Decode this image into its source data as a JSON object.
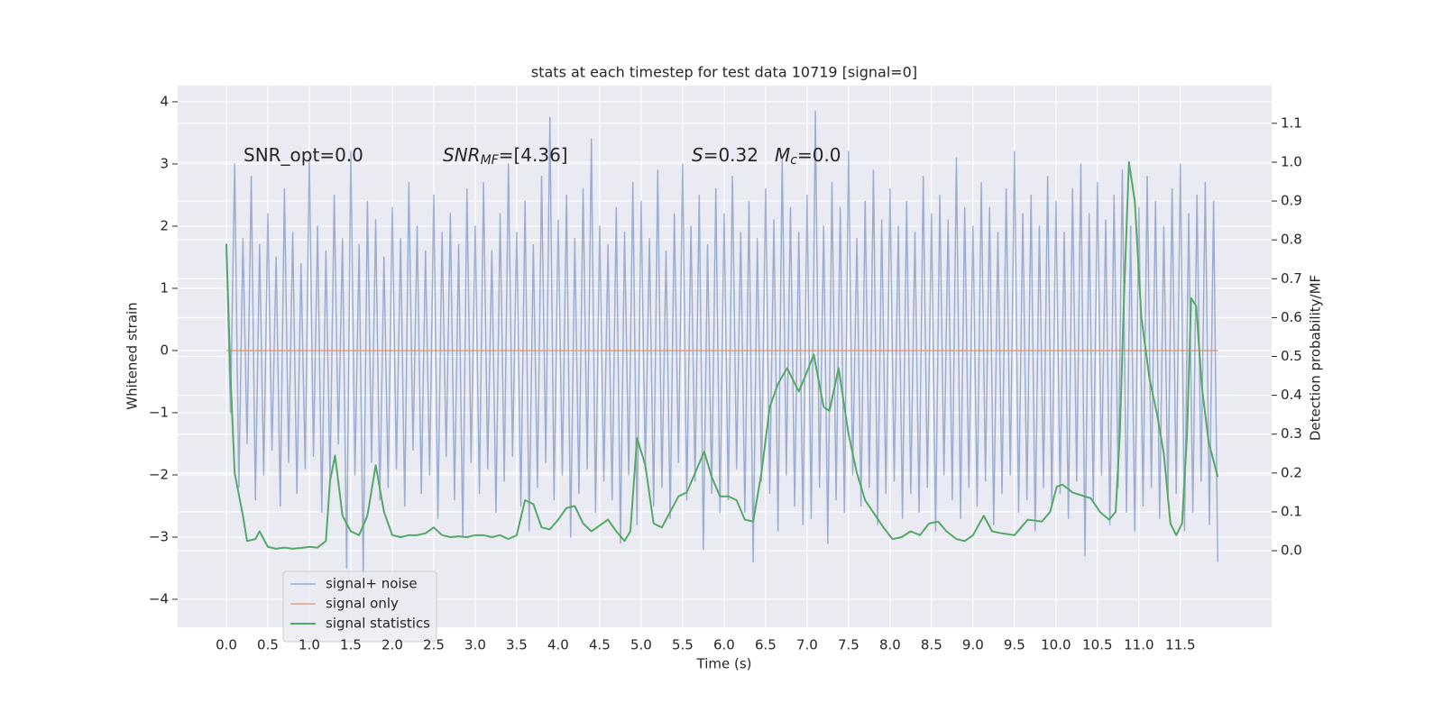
{
  "chart_data": {
    "type": "line",
    "title": "stats at each timestep for test data 10719 [signal=0]",
    "xlabel": "Time (s)",
    "ylabel": "Whitened strain",
    "y2label": "Detection probability/MF",
    "annotations": [
      {
        "text": "SNR_opt=0.0"
      },
      {
        "text": "SNR",
        "sub": "MF",
        "after": "=[4.36]"
      },
      {
        "text": "S",
        "after": "=0.32"
      },
      {
        "text": "M",
        "sub": "c",
        "after": "=0.0"
      }
    ],
    "xlim": [
      -0.587,
      12.6
    ],
    "ylim": [
      -4.45,
      4.26
    ],
    "y2lim": [
      -0.197,
      1.197
    ],
    "xticks": [
      {
        "value": 0,
        "label": "0.0"
      },
      {
        "value": 0.5,
        "label": "0.5"
      },
      {
        "value": 1,
        "label": "1.0"
      },
      {
        "value": 1.5,
        "label": "1.5"
      },
      {
        "value": 2,
        "label": "2.0"
      },
      {
        "value": 2.5,
        "label": "2.5"
      },
      {
        "value": 3,
        "label": "3.0"
      },
      {
        "value": 3.5,
        "label": "3.5"
      },
      {
        "value": 4,
        "label": "4.0"
      },
      {
        "value": 4.5,
        "label": "4.5"
      },
      {
        "value": 5,
        "label": "5.0"
      },
      {
        "value": 5.5,
        "label": "5.5"
      },
      {
        "value": 6,
        "label": "6.0"
      },
      {
        "value": 6.5,
        "label": "6.5"
      },
      {
        "value": 7,
        "label": "7.0"
      },
      {
        "value": 7.5,
        "label": "7.5"
      },
      {
        "value": 8,
        "label": "8.0"
      },
      {
        "value": 8.5,
        "label": "8.5"
      },
      {
        "value": 9,
        "label": "9.0"
      },
      {
        "value": 9.5,
        "label": "9.5"
      },
      {
        "value": 10,
        "label": "10.0"
      },
      {
        "value": 10.5,
        "label": "10.5"
      },
      {
        "value": 11,
        "label": "11.0"
      },
      {
        "value": 11.5,
        "label": "11.5"
      }
    ],
    "yticks": [
      {
        "value": -4,
        "label": "−4"
      },
      {
        "value": -3,
        "label": "−3"
      },
      {
        "value": -2,
        "label": "−2"
      },
      {
        "value": -1,
        "label": "−1"
      },
      0,
      1,
      2,
      3,
      4
    ],
    "y2ticks": [
      {
        "value": 0,
        "label": "0.0"
      },
      {
        "value": 0.1,
        "label": "0.1"
      },
      {
        "value": 0.2,
        "label": "0.2"
      },
      {
        "value": 0.3,
        "label": "0.3"
      },
      {
        "value": 0.4,
        "label": "0.4"
      },
      {
        "value": 0.5,
        "label": "0.5"
      },
      {
        "value": 0.6,
        "label": "0.6"
      },
      {
        "value": 0.7,
        "label": "0.7"
      },
      {
        "value": 0.8,
        "label": "0.8"
      },
      {
        "value": 0.9,
        "label": "0.9"
      },
      {
        "value": 1,
        "label": "1.0"
      },
      {
        "value": 1.1,
        "label": "1.1"
      }
    ],
    "grid": true,
    "legend": "lower left",
    "series": [
      {
        "name": "signal+ noise",
        "color": "#4c72b0",
        "x": [
          0,
          0.05,
          0.1,
          0.15,
          0.2,
          0.25,
          0.3,
          0.35,
          0.4,
          0.45,
          0.5,
          0.55,
          0.6,
          0.65,
          0.7,
          0.75,
          0.8,
          0.85,
          0.9,
          0.95,
          1,
          1.05,
          1.1,
          1.15,
          1.2,
          1.25,
          1.3,
          1.35,
          1.4,
          1.45,
          1.5,
          1.55,
          1.6,
          1.65,
          1.7,
          1.75,
          1.8,
          1.85,
          1.9,
          1.95,
          2,
          2.05,
          2.1,
          2.15,
          2.2,
          2.25,
          2.3,
          2.35,
          2.4,
          2.45,
          2.5,
          2.55,
          2.6,
          2.65,
          2.7,
          2.75,
          2.8,
          2.85,
          2.9,
          2.95,
          3,
          3.05,
          3.1,
          3.15,
          3.2,
          3.25,
          3.3,
          3.35,
          3.4,
          3.45,
          3.5,
          3.55,
          3.6,
          3.65,
          3.7,
          3.75,
          3.8,
          3.85,
          3.9,
          3.95,
          4,
          4.05,
          4.1,
          4.15,
          4.2,
          4.25,
          4.3,
          4.35,
          4.4,
          4.45,
          4.5,
          4.55,
          4.6,
          4.65,
          4.7,
          4.75,
          4.8,
          4.85,
          4.9,
          4.95,
          5,
          5.05,
          5.1,
          5.15,
          5.2,
          5.25,
          5.3,
          5.35,
          5.4,
          5.45,
          5.5,
          5.55,
          5.6,
          5.65,
          5.7,
          5.75,
          5.8,
          5.85,
          5.9,
          5.95,
          6,
          6.05,
          6.1,
          6.15,
          6.2,
          6.25,
          6.3,
          6.35,
          6.4,
          6.45,
          6.5,
          6.55,
          6.6,
          6.65,
          6.7,
          6.75,
          6.8,
          6.85,
          6.9,
          6.95,
          7,
          7.05,
          7.1,
          7.15,
          7.2,
          7.25,
          7.3,
          7.35,
          7.4,
          7.45,
          7.5,
          7.55,
          7.6,
          7.65,
          7.7,
          7.75,
          7.8,
          7.85,
          7.9,
          7.95,
          8,
          8.05,
          8.1,
          8.15,
          8.2,
          8.25,
          8.3,
          8.35,
          8.4,
          8.45,
          8.5,
          8.55,
          8.6,
          8.65,
          8.7,
          8.75,
          8.8,
          8.85,
          8.9,
          8.95,
          9,
          9.05,
          9.1,
          9.15,
          9.2,
          9.25,
          9.3,
          9.35,
          9.4,
          9.45,
          9.5,
          9.55,
          9.6,
          9.65,
          9.7,
          9.75,
          9.8,
          9.85,
          9.9,
          9.95,
          10,
          10.05,
          10.1,
          10.15,
          10.2,
          10.25,
          10.3,
          10.35,
          10.4,
          10.45,
          10.5,
          10.55,
          10.6,
          10.65,
          10.7,
          10.75,
          10.8,
          10.85,
          10.9,
          10.95,
          11,
          11.05,
          11.1,
          11.15,
          11.2,
          11.25,
          11.3,
          11.35,
          11.4,
          11.45,
          11.5,
          11.55,
          11.6,
          11.65,
          11.7,
          11.75,
          11.8,
          11.85,
          11.9,
          11.95
        ],
        "values": [
          1.6,
          -1.0,
          3.0,
          -2.2,
          1.8,
          -1.5,
          2.8,
          -2.4,
          1.7,
          -2.0,
          2.2,
          -1.6,
          1.5,
          -2.5,
          2.6,
          -1.8,
          1.9,
          -2.3,
          1.4,
          -1.9,
          3.1,
          -1.7,
          2.0,
          -2.6,
          1.6,
          -2.1,
          2.5,
          -1.5,
          1.8,
          -3.5,
          3.2,
          -2.0,
          1.7,
          -3.6,
          2.4,
          -1.8,
          2.1,
          -2.4,
          1.5,
          -2.2,
          2.3,
          -1.9,
          1.8,
          -2.5,
          2.7,
          -1.6,
          2.0,
          -2.3,
          1.6,
          -2.0,
          2.5,
          -2.7,
          1.9,
          -1.7,
          2.2,
          -2.4,
          1.7,
          -3.0,
          2.6,
          -1.8,
          2.0,
          -2.3,
          2.7,
          -1.9,
          1.6,
          -2.6,
          2.2,
          -2.1,
          3.0,
          -1.7,
          1.9,
          -2.5,
          2.4,
          -2.9,
          1.7,
          -2.2,
          2.8,
          -1.8,
          3.75,
          -2.4,
          2.1,
          -2.0,
          2.5,
          -3.0,
          1.8,
          -2.3,
          2.6,
          -1.9,
          3.4,
          -2.6,
          2.0,
          -2.1,
          1.7,
          -2.4,
          2.3,
          -3.1,
          1.9,
          -2.0,
          2.7,
          -2.8,
          2.4,
          -1.9,
          1.8,
          -2.5,
          2.9,
          -2.2,
          1.6,
          -2.7,
          2.2,
          -1.8,
          3.0,
          -2.4,
          2.0,
          -2.1,
          2.5,
          -3.2,
          1.7,
          -2.3,
          2.6,
          -2.6,
          2.2,
          -2.4,
          2.8,
          -1.9,
          1.9,
          -2.6,
          2.4,
          -3.4,
          1.8,
          -2.1,
          2.6,
          -2.3,
          2.1,
          -2.9,
          3.1,
          -2.0,
          2.3,
          -2.5,
          1.9,
          -2.8,
          2.5,
          -2.7,
          3.85,
          -2.2,
          2.0,
          -3.1,
          2.7,
          -2.4,
          2.3,
          -2.6,
          3.2,
          -2.0,
          1.8,
          -2.5,
          2.4,
          -2.2,
          2.9,
          -2.8,
          2.1,
          -2.3,
          2.6,
          -2.1,
          2.0,
          -2.7,
          2.4,
          -2.3,
          1.9,
          -2.6,
          2.8,
          -2.2,
          2.2,
          -2.9,
          2.5,
          -2.0,
          2.1,
          -2.4,
          3.1,
          -2.7,
          2.3,
          -2.2,
          2.0,
          -2.5,
          2.7,
          -2.1,
          2.3,
          -2.8,
          1.9,
          -2.3,
          2.6,
          -2.0,
          3.2,
          -2.6,
          2.2,
          -2.4,
          2.5,
          -2.9,
          2.0,
          -2.2,
          2.8,
          -2.5,
          2.4,
          -2.3,
          1.9,
          -2.7,
          2.6,
          -2.1,
          3.0,
          -3.3,
          2.2,
          -2.4,
          2.7,
          -2.0,
          2.1,
          -2.8,
          2.5,
          -2.2,
          2.9,
          -2.6,
          2.0,
          -2.9,
          2.3,
          -2.5,
          2.8,
          -2.2,
          2.4,
          -2.7,
          2.0,
          -2.4,
          2.6,
          -2.3,
          3.0,
          -2.9,
          2.2,
          -2.6,
          2.5,
          -2.1,
          2.7,
          -2.8,
          2.4,
          -3.4
        ]
      },
      {
        "name": "signal only",
        "color": "#dd8452",
        "x": [
          0,
          11.95
        ],
        "values": [
          0,
          0
        ]
      },
      {
        "name": "signal statistics",
        "color": "#55a868",
        "axis": "y2",
        "x": [
          0,
          0.05,
          0.1,
          0.2,
          0.25,
          0.35,
          0.4,
          0.5,
          0.6,
          0.7,
          0.8,
          0.9,
          1.0,
          1.1,
          1.2,
          1.25,
          1.31,
          1.4,
          1.5,
          1.6,
          1.7,
          1.8,
          1.9,
          2.0,
          2.1,
          2.2,
          2.3,
          2.4,
          2.5,
          2.6,
          2.7,
          2.8,
          2.9,
          3.0,
          3.1,
          3.2,
          3.3,
          3.4,
          3.5,
          3.6,
          3.7,
          3.8,
          3.9,
          4.0,
          4.1,
          4.2,
          4.3,
          4.4,
          4.5,
          4.6,
          4.7,
          4.8,
          4.87,
          4.95,
          5.05,
          5.15,
          5.25,
          5.35,
          5.45,
          5.55,
          5.65,
          5.76,
          5.85,
          5.95,
          6.05,
          6.15,
          6.25,
          6.35,
          6.45,
          6.55,
          6.65,
          6.76,
          6.9,
          6.98,
          7.08,
          7.2,
          7.27,
          7.38,
          7.5,
          7.6,
          7.7,
          7.92,
          8.03,
          8.14,
          8.25,
          8.36,
          8.47,
          8.58,
          8.68,
          8.8,
          8.9,
          9.0,
          9.13,
          9.23,
          9.34,
          9.5,
          9.66,
          9.83,
          9.93,
          10.01,
          10.08,
          10.2,
          10.42,
          10.53,
          10.64,
          10.72,
          10.77,
          10.82,
          10.88,
          10.95,
          11.03,
          11.13,
          11.22,
          11.3,
          11.38,
          11.45,
          11.52,
          11.58,
          11.63,
          11.69,
          11.76,
          11.84,
          11.95
        ],
        "values": [
          0.79,
          0.45,
          0.2,
          0.09,
          0.025,
          0.03,
          0.05,
          0.01,
          0.005,
          0.008,
          0.005,
          0.007,
          0.01,
          0.008,
          0.025,
          0.18,
          0.245,
          0.09,
          0.05,
          0.04,
          0.09,
          0.22,
          0.1,
          0.04,
          0.035,
          0.04,
          0.04,
          0.045,
          0.06,
          0.04,
          0.035,
          0.037,
          0.035,
          0.04,
          0.04,
          0.035,
          0.04,
          0.03,
          0.04,
          0.13,
          0.12,
          0.06,
          0.055,
          0.08,
          0.11,
          0.115,
          0.07,
          0.05,
          0.065,
          0.08,
          0.05,
          0.025,
          0.05,
          0.29,
          0.22,
          0.07,
          0.06,
          0.1,
          0.14,
          0.15,
          0.2,
          0.255,
          0.19,
          0.14,
          0.14,
          0.13,
          0.08,
          0.075,
          0.2,
          0.37,
          0.43,
          0.47,
          0.41,
          0.45,
          0.505,
          0.37,
          0.36,
          0.47,
          0.3,
          0.2,
          0.13,
          0.06,
          0.03,
          0.035,
          0.05,
          0.04,
          0.07,
          0.075,
          0.05,
          0.03,
          0.025,
          0.04,
          0.09,
          0.05,
          0.045,
          0.04,
          0.08,
          0.075,
          0.1,
          0.165,
          0.17,
          0.15,
          0.135,
          0.1,
          0.08,
          0.1,
          0.3,
          0.65,
          1.0,
          0.9,
          0.6,
          0.44,
          0.35,
          0.25,
          0.07,
          0.04,
          0.07,
          0.3,
          0.65,
          0.63,
          0.42,
          0.28,
          0.19
        ]
      }
    ]
  }
}
